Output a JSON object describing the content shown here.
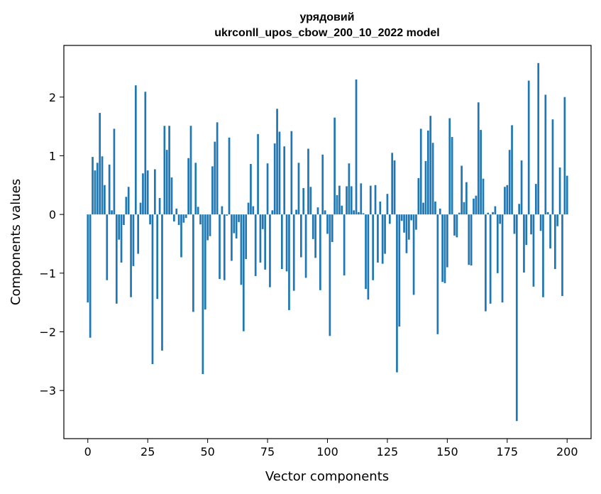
{
  "chart_data": {
    "type": "bar",
    "title_line1": "урядовий",
    "title_line2": "ukrconll_upos_cbow_200_10_2022 model",
    "xlabel": "Vector components",
    "ylabel": "Components values",
    "xlim": [
      -10,
      210
    ],
    "ylim": [
      -3.82,
      2.88
    ],
    "xticks": [
      0,
      25,
      50,
      75,
      100,
      125,
      150,
      175,
      200
    ],
    "xtick_labels": [
      "0",
      "25",
      "50",
      "75",
      "100",
      "125",
      "150",
      "175",
      "200"
    ],
    "yticks": [
      -3,
      -2,
      -1,
      0,
      1,
      2
    ],
    "ytick_labels": [
      "−3",
      "−2",
      "−1",
      "0",
      "1",
      "2"
    ],
    "bar_color": "#1f77b4",
    "grid": false,
    "legend": "none",
    "values": [
      -1.5,
      -2.1,
      0.98,
      0.75,
      0.88,
      1.73,
      0.99,
      0.5,
      -1.12,
      0.85,
      0.07,
      1.46,
      -1.52,
      -0.43,
      -0.82,
      -0.18,
      0.3,
      0.47,
      -1.41,
      -0.88,
      2.2,
      -0.67,
      0.2,
      0.7,
      2.09,
      0.75,
      -0.17,
      -2.55,
      0.77,
      -1.44,
      0.28,
      -2.32,
      1.51,
      1.1,
      1.51,
      0.63,
      -0.12,
      0.1,
      -0.18,
      -0.73,
      -0.14,
      -0.06,
      0.96,
      1.51,
      -1.66,
      0.88,
      0.13,
      -0.17,
      -2.72,
      -1.62,
      -0.44,
      -0.37,
      0.82,
      1.24,
      1.57,
      -1.1,
      0.14,
      -1.12,
      -0.02,
      1.31,
      -0.79,
      -0.32,
      -0.41,
      -0.13,
      -1.2,
      -1.99,
      -0.76,
      0.2,
      0.86,
      0.14,
      -1.05,
      1.37,
      -0.82,
      -0.25,
      -0.94,
      0.87,
      -1.24,
      0.07,
      1.21,
      1.8,
      1.41,
      -0.93,
      1.16,
      -0.97,
      -1.63,
      1.42,
      -1.3,
      0.08,
      0.88,
      -0.73,
      0.45,
      -1.08,
      1.12,
      0.47,
      -0.42,
      -0.74,
      0.12,
      -1.29,
      1.02,
      0.07,
      -0.33,
      -2.07,
      -0.47,
      1.65,
      0.33,
      0.49,
      0.15,
      -1.04,
      0.48,
      0.87,
      0.48,
      0.07,
      2.3,
      0.04,
      0.53,
      0.02,
      -1.27,
      -1.45,
      0.49,
      -1.12,
      0.5,
      -0.82,
      0.22,
      -0.84,
      -0.67,
      0.35,
      -0.16,
      1.05,
      0.92,
      -2.69,
      -1.91,
      -0.11,
      -0.31,
      -0.66,
      -0.43,
      -0.1,
      -1.37,
      -0.26,
      0.62,
      1.46,
      0.2,
      0.91,
      1.43,
      1.68,
      1.22,
      0.22,
      -2.04,
      0.1,
      -1.15,
      -1.17,
      -0.9,
      1.64,
      1.32,
      -0.36,
      -0.39,
      0.03,
      0.83,
      0.21,
      0.55,
      -0.86,
      -0.87,
      0.27,
      0.32,
      1.91,
      1.44,
      0.61,
      -1.65,
      0.03,
      -1.52,
      0.04,
      0.14,
      -1.0,
      -0.16,
      -1.5,
      0.47,
      0.5,
      1.1,
      1.52,
      -0.33,
      -3.52,
      0.18,
      0.92,
      -0.99,
      -0.52,
      2.28,
      -0.34,
      -1.23,
      0.52,
      2.58,
      -0.28,
      -1.41,
      2.04,
      0.04,
      -0.58,
      1.62,
      -0.93,
      -0.2,
      0.8,
      -1.39,
      2.0,
      0.66
    ]
  }
}
